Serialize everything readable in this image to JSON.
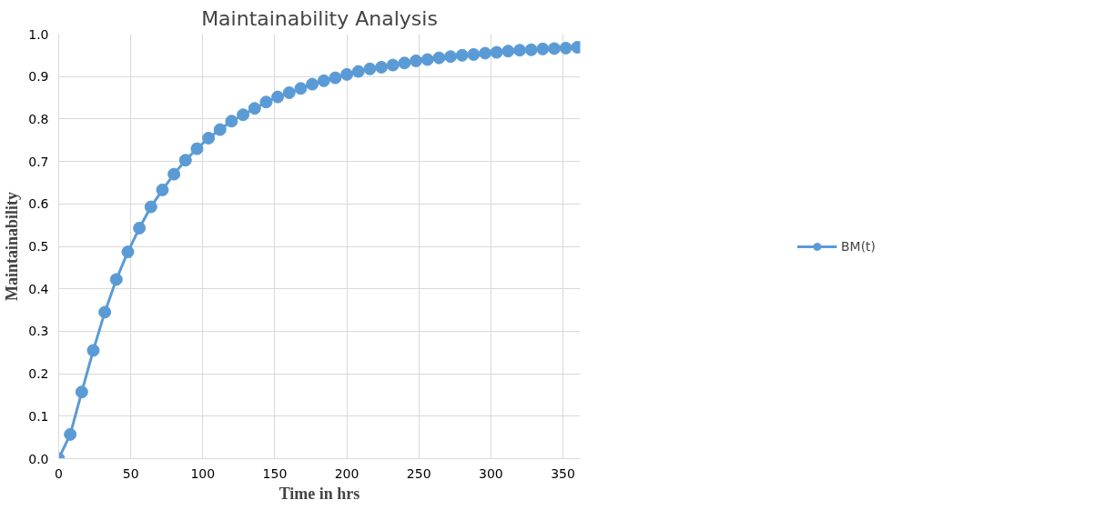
{
  "chart_data": {
    "type": "line",
    "title": "Maintainability Analysis",
    "xlabel": "Time in hrs",
    "ylabel": "Maintainability",
    "x": [
      0,
      8,
      16,
      24,
      32,
      40,
      48,
      56,
      64,
      72,
      80,
      88,
      96,
      104,
      112,
      120,
      128,
      136,
      144,
      152,
      160,
      168,
      176,
      184,
      192,
      200,
      208,
      216,
      224,
      232,
      240,
      248,
      256,
      264,
      272,
      280,
      288,
      296,
      304,
      312,
      320,
      328,
      336,
      344,
      352,
      360
    ],
    "series": [
      {
        "name": "BM(t)",
        "color": "#5b9bd5",
        "values": [
          0.0,
          0.057,
          0.157,
          0.255,
          0.345,
          0.422,
          0.487,
          0.543,
          0.593,
          0.633,
          0.67,
          0.703,
          0.73,
          0.755,
          0.775,
          0.795,
          0.81,
          0.825,
          0.84,
          0.852,
          0.862,
          0.872,
          0.882,
          0.89,
          0.897,
          0.905,
          0.912,
          0.918,
          0.922,
          0.927,
          0.932,
          0.937,
          0.94,
          0.944,
          0.947,
          0.95,
          0.952,
          0.955,
          0.957,
          0.96,
          0.962,
          0.963,
          0.965,
          0.966,
          0.967,
          0.969
        ]
      }
    ],
    "xlim": [
      0,
      362
    ],
    "ylim": [
      0,
      1.0
    ],
    "xticks": [
      0,
      50,
      100,
      150,
      200,
      250,
      300,
      350
    ],
    "yticks": [
      {
        "value": 0,
        "label": "0.0"
      },
      {
        "value": 0.1,
        "label": "0.1"
      },
      {
        "value": 0.2,
        "label": "0.2"
      },
      {
        "value": 0.3,
        "label": "0.3"
      },
      {
        "value": 0.4,
        "label": "0.4"
      },
      {
        "value": 0.5,
        "label": "0.5"
      },
      {
        "value": 0.6,
        "label": "0.6"
      },
      {
        "value": 0.7,
        "label": "0.7"
      },
      {
        "value": 0.8,
        "label": "0.8"
      },
      {
        "value": 0.9,
        "label": "0.9"
      },
      {
        "value": 1.0,
        "label": "1.0"
      }
    ],
    "grid": true,
    "legend": "right",
    "marker": "circle",
    "line_style": "solid"
  }
}
